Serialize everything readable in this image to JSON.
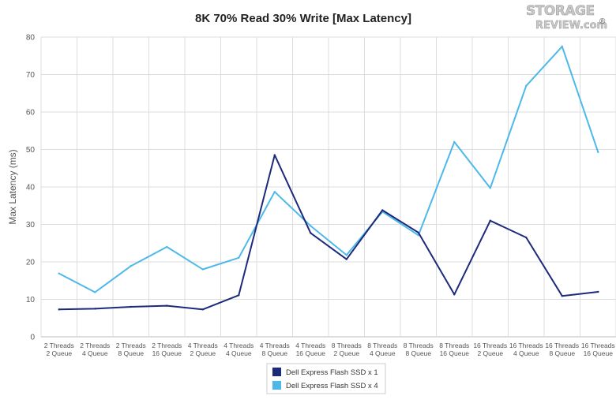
{
  "logo": {
    "line1": "STORAGE",
    "line2": "REVIEW.com",
    "mark": "®"
  },
  "chart_data": {
    "type": "line",
    "title": "8K 70% Read 30% Write [Max Latency]",
    "xlabel": "",
    "ylabel": "Max Latency (ms)",
    "ylim": [
      0,
      80
    ],
    "yticks": [
      0,
      10,
      20,
      30,
      40,
      50,
      60,
      70,
      80
    ],
    "grid": true,
    "legend_position": "bottom-center",
    "categories": [
      [
        "2 Threads",
        "2 Queue"
      ],
      [
        "2 Threads",
        "4 Queue"
      ],
      [
        "2 Threads",
        "8 Queue"
      ],
      [
        "2 Threads",
        "16 Queue"
      ],
      [
        "4 Threads",
        "2 Queue"
      ],
      [
        "4 Threads",
        "4 Queue"
      ],
      [
        "4 Threads",
        "8 Queue"
      ],
      [
        "4 Threads",
        "16 Queue"
      ],
      [
        "8 Threads",
        "2 Queue"
      ],
      [
        "8 Threads",
        "4 Queue"
      ],
      [
        "8 Threads",
        "8 Queue"
      ],
      [
        "8 Threads",
        "16 Queue"
      ],
      [
        "16 Threads",
        "2 Queue"
      ],
      [
        "16 Threads",
        "4 Queue"
      ],
      [
        "16 Threads",
        "8 Queue"
      ],
      [
        "16 Threads",
        "16 Queue"
      ]
    ],
    "series": [
      {
        "name": "Dell Express Flash SSD x 1",
        "color": "#1c2a7c",
        "values": [
          7.3,
          7.5,
          8.0,
          8.3,
          7.3,
          11.1,
          48.5,
          27.7,
          20.7,
          33.8,
          27.8,
          11.3,
          31.0,
          26.5,
          10.9,
          12.0
        ]
      },
      {
        "name": "Dell Express Flash SSD x 4",
        "color": "#4db9ea",
        "values": [
          16.9,
          11.9,
          18.9,
          24.0,
          18.0,
          21.1,
          38.7,
          29.6,
          21.8,
          33.4,
          27.1,
          52.0,
          39.7,
          67.0,
          77.5,
          49.3
        ]
      }
    ]
  }
}
